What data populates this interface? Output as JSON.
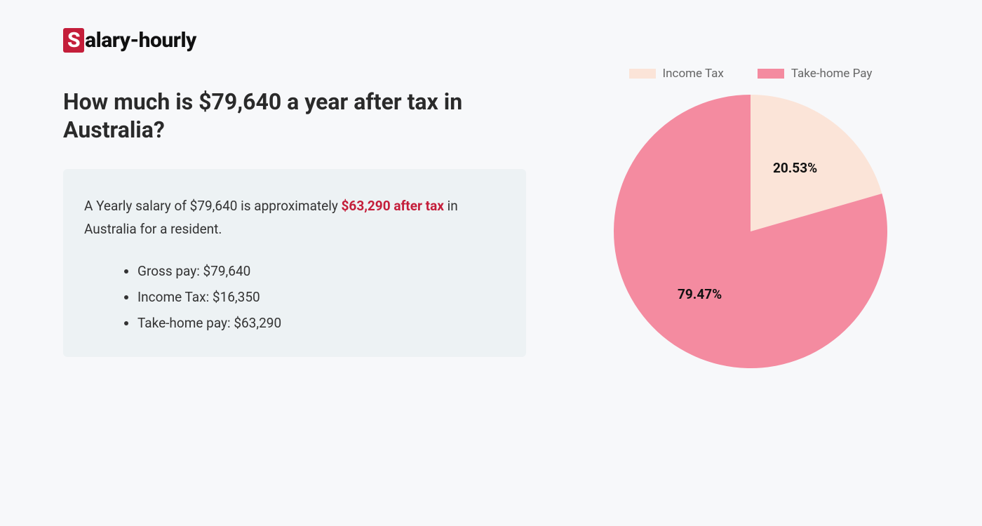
{
  "logo": {
    "s": "S",
    "rest": "alary-hourly"
  },
  "heading": "How much is $79,640 a year after tax in Australia?",
  "summary": {
    "prefix": "A Yearly salary of $79,640 is approximately ",
    "highlight": "$63,290 after tax",
    "suffix": " in Australia for a resident."
  },
  "details": [
    "Gross pay: $79,640",
    "Income Tax: $16,350",
    "Take-home pay: $63,290"
  ],
  "chart": {
    "type": "pie",
    "radius": 195,
    "slices": [
      {
        "label": "Income Tax",
        "value": 20.53,
        "display": "20.53%",
        "color": "#fbe4d8"
      },
      {
        "label": "Take-home Pay",
        "value": 79.47,
        "display": "79.47%",
        "color": "#f48ba0"
      }
    ],
    "legend_swatch_colors": [
      "#fbe4d8",
      "#f48ba0"
    ],
    "legend_text_color": "#666666",
    "label_color": "#111111",
    "label_fontsize": 19,
    "label_fontweight": 700,
    "background_color": "#f7f8fa"
  },
  "colors": {
    "page_bg": "#f7f8fa",
    "box_bg": "#edf2f4",
    "accent": "#c41e3a",
    "text": "#333333",
    "heading": "#2a2a2a"
  }
}
